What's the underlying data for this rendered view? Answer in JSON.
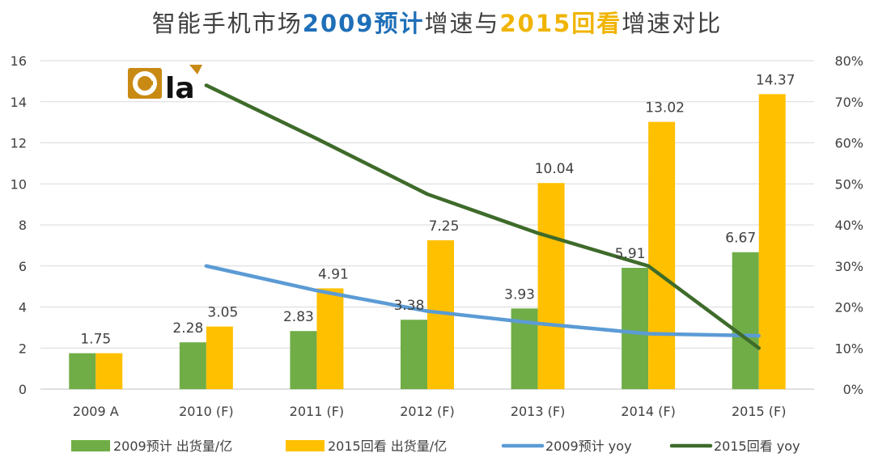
{
  "title": {
    "part1": "智能手机市场",
    "part2": "2009预计",
    "part3": "增速与",
    "part4": "2015回看",
    "part5": "增速对比"
  },
  "logo": {
    "text": "la"
  },
  "colors": {
    "bar2009": "#70ad47",
    "bar2015": "#ffc000",
    "line2009": "#5b9bd5",
    "line2015": "#3e6b2a"
  },
  "chart_data": {
    "type": "bar",
    "categories": [
      "2009 A",
      "2010 (F)",
      "2011 (F)",
      "2012 (F)",
      "2013 (F)",
      "2014 (F)",
      "2015 (F)"
    ],
    "series": [
      {
        "name": "2009预计 出货量/亿",
        "type": "bar",
        "axis": "left",
        "values": [
          1.75,
          2.28,
          2.83,
          3.38,
          3.93,
          5.91,
          6.67
        ],
        "labels": [
          "1.75",
          "2.28",
          "2.83",
          "3.38",
          "3.93",
          "5.91",
          "6.67"
        ]
      },
      {
        "name": "2015回看 出货量/亿",
        "type": "bar",
        "axis": "left",
        "values": [
          1.75,
          3.05,
          4.91,
          7.25,
          10.04,
          13.02,
          14.37
        ],
        "labels": [
          "",
          "3.05",
          "4.91",
          "7.25",
          "10.04",
          "13.02",
          "14.37"
        ]
      },
      {
        "name": "2009预计 yoy",
        "type": "line",
        "axis": "right",
        "values": [
          null,
          0.3,
          0.24,
          0.19,
          0.16,
          0.135,
          0.13
        ]
      },
      {
        "name": "2015回看 yoy",
        "type": "line",
        "axis": "right",
        "values": [
          null,
          0.74,
          0.61,
          0.475,
          0.38,
          0.3,
          0.1
        ]
      }
    ],
    "y_left": {
      "min": 0,
      "max": 16,
      "step": 2,
      "ticks": [
        "0",
        "2",
        "4",
        "6",
        "8",
        "10",
        "12",
        "14",
        "16"
      ]
    },
    "y_right": {
      "min": 0,
      "max": 0.8,
      "step": 0.1,
      "ticks": [
        "0%",
        "10%",
        "20%",
        "30%",
        "40%",
        "50%",
        "60%",
        "70%",
        "80%"
      ]
    },
    "grid": true,
    "legend_position": "bottom"
  }
}
